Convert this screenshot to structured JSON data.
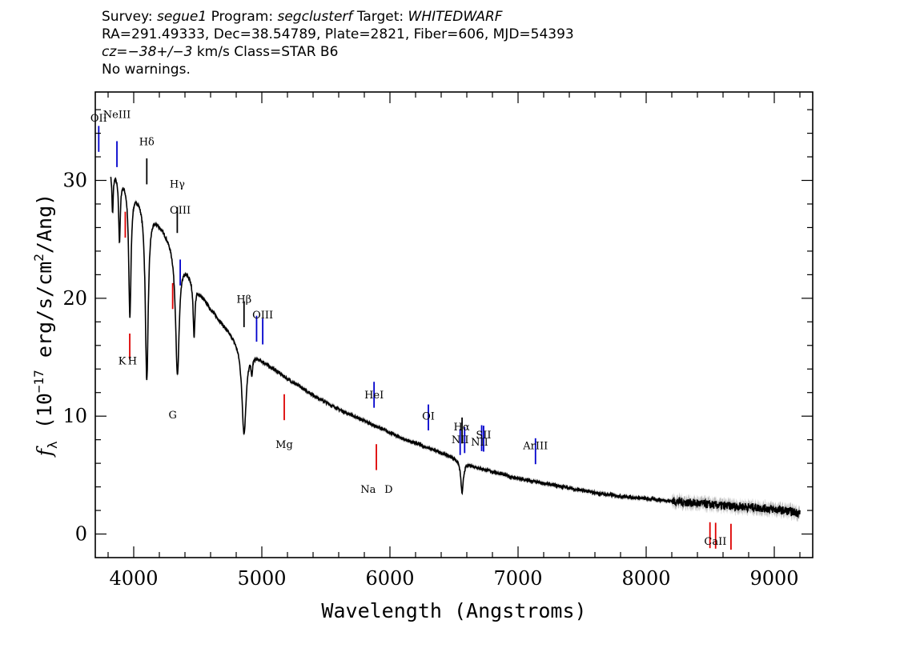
{
  "header": {
    "survey_label": "Survey:",
    "survey": "segue1",
    "program_label": "Program:",
    "program": "segclusterf",
    "target_label": "Target:",
    "target": "WHITEDWARF",
    "line2": "RA=291.49333, Dec=38.54789, Plate=2821, Fiber=606, MJD=54393",
    "cz_label": "cz",
    "cz_value": "=−38+/−3",
    "cz_unit": " km/s Class=STAR B6",
    "line4": "No warnings."
  },
  "chart_data": {
    "type": "line",
    "title": "",
    "xlabel": "Wavelength (Angstroms)",
    "ylabel_parts": [
      "f",
      "λ",
      " (10",
      "−17",
      " erg/s/cm",
      "2",
      "/Ang)"
    ],
    "xlim": [
      3700,
      9300
    ],
    "ylim": [
      -2,
      37.5
    ],
    "xticks": [
      4000,
      5000,
      6000,
      7000,
      8000,
      9000
    ],
    "yticks": [
      0,
      10,
      20,
      30
    ],
    "grid": false,
    "colors": {
      "spectrum": "#000000",
      "error": "#9a9a9a",
      "emission": "#0000cc",
      "absorption": "#dd0000",
      "balmer": "#000000"
    },
    "continuum": [
      [
        3820,
        31.0
      ],
      [
        3900,
        30.5
      ],
      [
        4000,
        29.3
      ],
      [
        4100,
        28.2
      ],
      [
        4200,
        26.5
      ],
      [
        4300,
        24.8
      ],
      [
        4400,
        22.9
      ],
      [
        4500,
        20.8
      ],
      [
        4600,
        19.2
      ],
      [
        4700,
        17.8
      ],
      [
        4800,
        16.6
      ],
      [
        4900,
        15.7
      ],
      [
        5000,
        14.8
      ],
      [
        5100,
        14.0
      ],
      [
        5200,
        13.2
      ],
      [
        5300,
        12.5
      ],
      [
        5400,
        11.8
      ],
      [
        5500,
        11.2
      ],
      [
        5600,
        10.6
      ],
      [
        5700,
        10.1
      ],
      [
        5800,
        9.6
      ],
      [
        5900,
        9.1
      ],
      [
        6000,
        8.6
      ],
      [
        6100,
        8.1
      ],
      [
        6200,
        7.7
      ],
      [
        6300,
        7.3
      ],
      [
        6400,
        6.9
      ],
      [
        6500,
        6.5
      ],
      [
        6600,
        6.0
      ],
      [
        6700,
        5.6
      ],
      [
        6800,
        5.3
      ],
      [
        6900,
        5.0
      ],
      [
        7000,
        4.7
      ],
      [
        7200,
        4.3
      ],
      [
        7400,
        3.9
      ],
      [
        7600,
        3.5
      ],
      [
        7800,
        3.2
      ],
      [
        8000,
        3.0
      ],
      [
        8200,
        2.8
      ],
      [
        8400,
        2.6
      ],
      [
        8600,
        2.4
      ],
      [
        8800,
        2.3
      ],
      [
        9000,
        2.1
      ],
      [
        9200,
        1.8
      ]
    ],
    "absorption_features": [
      {
        "wave": 3835,
        "depth": 3.5,
        "width": 6
      },
      {
        "wave": 3889,
        "depth": 5.5,
        "width": 8
      },
      {
        "wave": 3970,
        "depth": 11.0,
        "width": 11
      },
      {
        "wave": 4102,
        "depth": 15.0,
        "width": 14
      },
      {
        "wave": 4341,
        "depth": 10.5,
        "width": 17
      },
      {
        "wave": 4471,
        "depth": 4.5,
        "width": 8
      },
      {
        "wave": 4861,
        "depth": 7.5,
        "width": 20
      },
      {
        "wave": 4922,
        "depth": 1.5,
        "width": 6
      },
      {
        "wave": 6563,
        "depth": 2.7,
        "width": 12
      }
    ],
    "emission_lines": [
      {
        "name": "OII",
        "wave": 3727
      },
      {
        "name": "NeIII",
        "wave": 3869
      },
      {
        "name": "OIII",
        "wave": 4363
      },
      {
        "name": "OIII",
        "wave": 4959
      },
      {
        "name": "OIII",
        "wave": 5007
      },
      {
        "name": "HeI",
        "wave": 5876
      },
      {
        "name": "OI",
        "wave": 6300
      },
      {
        "name": "NII",
        "wave": 6548
      },
      {
        "name": "NII",
        "wave": 6583
      },
      {
        "name": "SII",
        "wave": 6716
      },
      {
        "name": "SII",
        "wave": 6731
      },
      {
        "name": "ArIII",
        "wave": 7136
      }
    ],
    "balmer_lines": [
      {
        "name": "Hδ",
        "wave": 4102
      },
      {
        "name": "Hγ",
        "wave": 4340
      },
      {
        "name": "Hβ",
        "wave": 4861
      },
      {
        "name": "Hα",
        "wave": 6563
      }
    ],
    "absorption_lines": [
      {
        "name": "K",
        "wave": 3934
      },
      {
        "name": "H",
        "wave": 3969
      },
      {
        "name": "G",
        "wave": 4304
      },
      {
        "name": "Mg",
        "wave": 5175
      },
      {
        "name": "Na",
        "wave": 5894
      },
      {
        "name": "CaII",
        "wave": 8498
      },
      {
        "name": "CaII",
        "wave": 8542
      },
      {
        "name": "CaII",
        "wave": 8662
      }
    ],
    "labels": [
      {
        "text": "OII",
        "wave": 3727,
        "y": 35.0,
        "color": "#000000"
      },
      {
        "text": "NeIII",
        "wave": 3869,
        "y": 35.3,
        "color": "#000000"
      },
      {
        "text": "Hδ",
        "wave": 4102,
        "y": 33.0,
        "color": "#000000"
      },
      {
        "text": "Hγ",
        "wave": 4340,
        "y": 29.4,
        "color": "#000000"
      },
      {
        "text": "OIII",
        "wave": 4363,
        "y": 27.2,
        "color": "#000000"
      },
      {
        "text": "Hβ",
        "wave": 4861,
        "y": 19.6,
        "color": "#000000"
      },
      {
        "text": "OIII",
        "wave": 5007,
        "y": 18.3,
        "color": "#000000"
      },
      {
        "text": "HeI",
        "wave": 5876,
        "y": 11.5,
        "color": "#000000"
      },
      {
        "text": "OI",
        "wave": 6300,
        "y": 9.7,
        "color": "#000000"
      },
      {
        "text": "NII",
        "wave": 6548,
        "y": 7.7,
        "color": "#000000"
      },
      {
        "text": "Hα",
        "wave": 6560,
        "y": 8.8,
        "color": "#000000"
      },
      {
        "text": "SII",
        "wave": 6731,
        "y": 8.1,
        "color": "#000000"
      },
      {
        "text": "NII",
        "wave": 6700,
        "y": 7.5,
        "color": "#000000"
      },
      {
        "text": "ArIII",
        "wave": 7136,
        "y": 7.2,
        "color": "#000000"
      },
      {
        "text": "K",
        "wave": 3910,
        "y": 14.4,
        "color": "#000000"
      },
      {
        "text": "H",
        "wave": 3990,
        "y": 14.4,
        "color": "#000000"
      },
      {
        "text": "G",
        "wave": 4304,
        "y": 9.8,
        "color": "#000000"
      },
      {
        "text": "Mg",
        "wave": 5175,
        "y": 7.3,
        "color": "#000000"
      },
      {
        "text": "Na",
        "wave": 5830,
        "y": 3.5,
        "color": "#000000"
      },
      {
        "text": "D",
        "wave": 5990,
        "y": 3.5,
        "color": "#000000"
      },
      {
        "text": "CaII",
        "wave": 8540,
        "y": -0.9,
        "color": "#000000"
      }
    ]
  }
}
